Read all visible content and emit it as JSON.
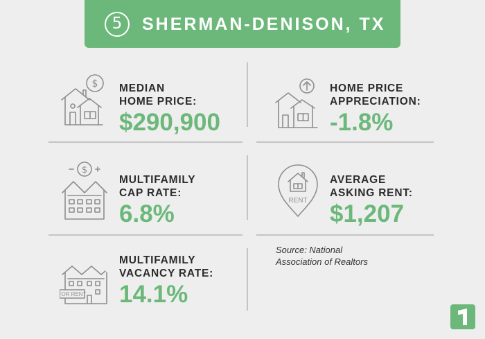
{
  "header": {
    "number": "5",
    "title": "SHERMAN-DENISON, TX"
  },
  "stats": {
    "median_price": {
      "label_line1": "MEDIAN",
      "label_line2": "HOME PRICE:",
      "value": "$290,900"
    },
    "appreciation": {
      "label_line1": "HOME PRICE",
      "label_line2": "APPRECIATION:",
      "value": "-1.8%"
    },
    "cap_rate": {
      "label_line1": "MULTIFAMILY",
      "label_line2": "CAP RATE:",
      "value": "6.8%"
    },
    "rent": {
      "label_line1": "AVERAGE",
      "label_line2": "ASKING RENT:",
      "value": "$1,207"
    },
    "vacancy": {
      "label_line1": "MULTIFAMILY",
      "label_line2": "VACANCY RATE:",
      "value": "14.1%"
    }
  },
  "icons": {
    "median_price": "house-dollar-icon",
    "appreciation": "house-arrow-up-icon",
    "cap_rate": "apartment-dollar-icon",
    "rent": "rent-location-pin-icon",
    "vacancy": "townhouse-for-rent-icon"
  },
  "icon_text": {
    "rent_pin": "RENT",
    "for_rent_sign": "FOR RENT"
  },
  "source": {
    "line1": "Source: National",
    "line2": "Association of Realtors"
  },
  "colors": {
    "accent": "#6cb87a",
    "background": "#eeeeee",
    "label": "#2c2c2c",
    "icon_stroke": "#8e8e8e"
  }
}
